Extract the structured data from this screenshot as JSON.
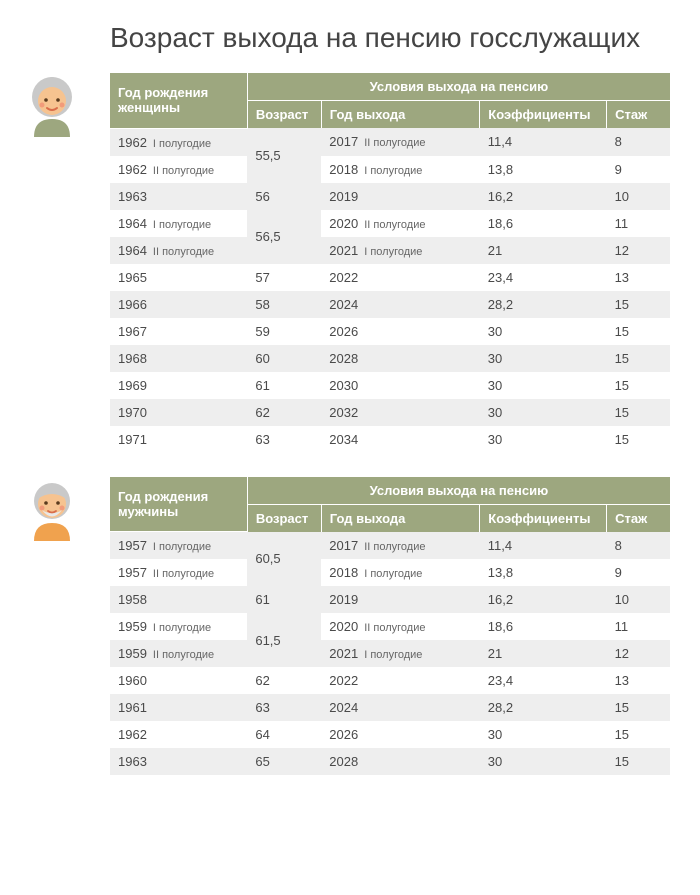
{
  "title": "Возраст выхода на пенсию госслужащих",
  "colors": {
    "header_bg": "#9da77f",
    "header_text": "#ffffff",
    "row_odd": "#eeeeee",
    "row_even": "#ffffff",
    "text": "#444444"
  },
  "women": {
    "header_main": "Год рождения женщины",
    "header_super": "Условия выхода на пенсию",
    "header_age": "Возраст",
    "header_exit": "Год выхода",
    "header_coef": "Коэффициенты",
    "header_exp": "Стаж",
    "rows": [
      {
        "year": "1962",
        "half": "I полугодие",
        "age": "55,5",
        "age_span": 2,
        "exit": "2017",
        "exit_half": "II полугодие",
        "coef": "11,4",
        "exp": "8",
        "shade": "odd"
      },
      {
        "year": "1962",
        "half": "II полугодие",
        "age": "",
        "age_span": 0,
        "exit": "2018",
        "exit_half": "I полугодие",
        "coef": "13,8",
        "exp": "9",
        "shade": "even"
      },
      {
        "year": "1963",
        "half": "",
        "age": "56",
        "age_span": 1,
        "exit": "2019",
        "exit_half": "",
        "coef": "16,2",
        "exp": "10",
        "shade": "odd"
      },
      {
        "year": "1964",
        "half": "I полугодие",
        "age": "56,5",
        "age_span": 2,
        "exit": "2020",
        "exit_half": "II полугодие",
        "coef": "18,6",
        "exp": "11",
        "shade": "even"
      },
      {
        "year": "1964",
        "half": "II полугодие",
        "age": "",
        "age_span": 0,
        "exit": "2021",
        "exit_half": "I полугодие",
        "coef": "21",
        "exp": "12",
        "shade": "odd"
      },
      {
        "year": "1965",
        "half": "",
        "age": "57",
        "age_span": 1,
        "exit": "2022",
        "exit_half": "",
        "coef": "23,4",
        "exp": "13",
        "shade": "even"
      },
      {
        "year": "1966",
        "half": "",
        "age": "58",
        "age_span": 1,
        "exit": "2024",
        "exit_half": "",
        "coef": "28,2",
        "exp": "15",
        "shade": "odd"
      },
      {
        "year": "1967",
        "half": "",
        "age": "59",
        "age_span": 1,
        "exit": "2026",
        "exit_half": "",
        "coef": "30",
        "exp": "15",
        "shade": "even"
      },
      {
        "year": "1968",
        "half": "",
        "age": "60",
        "age_span": 1,
        "exit": "2028",
        "exit_half": "",
        "coef": "30",
        "exp": "15",
        "shade": "odd"
      },
      {
        "year": "1969",
        "half": "",
        "age": "61",
        "age_span": 1,
        "exit": "2030",
        "exit_half": "",
        "coef": "30",
        "exp": "15",
        "shade": "even"
      },
      {
        "year": "1970",
        "half": "",
        "age": "62",
        "age_span": 1,
        "exit": "2032",
        "exit_half": "",
        "coef": "30",
        "exp": "15",
        "shade": "odd"
      },
      {
        "year": "1971",
        "half": "",
        "age": "63",
        "age_span": 1,
        "exit": "2034",
        "exit_half": "",
        "coef": "30",
        "exp": "15",
        "shade": "even"
      }
    ]
  },
  "men": {
    "header_main": "Год рождения мужчины",
    "header_super": "Условия выхода на пенсию",
    "header_age": "Возраст",
    "header_exit": "Год выхода",
    "header_coef": "Коэффициенты",
    "header_exp": "Стаж",
    "rows": [
      {
        "year": "1957",
        "half": "I полугодие",
        "age": "60,5",
        "age_span": 2,
        "exit": "2017",
        "exit_half": "II полугодие",
        "coef": "11,4",
        "exp": "8",
        "shade": "odd"
      },
      {
        "year": "1957",
        "half": "II полугодие",
        "age": "",
        "age_span": 0,
        "exit": "2018",
        "exit_half": "I полугодие",
        "coef": "13,8",
        "exp": "9",
        "shade": "even"
      },
      {
        "year": "1958",
        "half": "",
        "age": "61",
        "age_span": 1,
        "exit": "2019",
        "exit_half": "",
        "coef": "16,2",
        "exp": "10",
        "shade": "odd"
      },
      {
        "year": "1959",
        "half": "I полугодие",
        "age": "61,5",
        "age_span": 2,
        "exit": "2020",
        "exit_half": "II полугодие",
        "coef": "18,6",
        "exp": "11",
        "shade": "even"
      },
      {
        "year": "1959",
        "half": "II полугодие",
        "age": "",
        "age_span": 0,
        "exit": "2021",
        "exit_half": "I полугодие",
        "coef": "21",
        "exp": "12",
        "shade": "odd"
      },
      {
        "year": "1960",
        "half": "",
        "age": "62",
        "age_span": 1,
        "exit": "2022",
        "exit_half": "",
        "coef": "23,4",
        "exp": "13",
        "shade": "even"
      },
      {
        "year": "1961",
        "half": "",
        "age": "63",
        "age_span": 1,
        "exit": "2024",
        "exit_half": "",
        "coef": "28,2",
        "exp": "15",
        "shade": "odd"
      },
      {
        "year": "1962",
        "half": "",
        "age": "64",
        "age_span": 1,
        "exit": "2026",
        "exit_half": "",
        "coef": "30",
        "exp": "15",
        "shade": "even"
      },
      {
        "year": "1963",
        "half": "",
        "age": "65",
        "age_span": 1,
        "exit": "2028",
        "exit_half": "",
        "coef": "30",
        "exp": "15",
        "shade": "odd"
      }
    ]
  },
  "avatars": {
    "woman": {
      "hair": "#c9c9c9",
      "skin": "#f6c390",
      "shirt": "#9da77f",
      "cheek": "#f29b7a",
      "mouth": "#d96d4a"
    },
    "man": {
      "hair": "#c9c9c9",
      "skin": "#f6c390",
      "shirt": "#f0a24e",
      "cheek": "#f29b7a",
      "mouth": "#d96d4a"
    }
  }
}
